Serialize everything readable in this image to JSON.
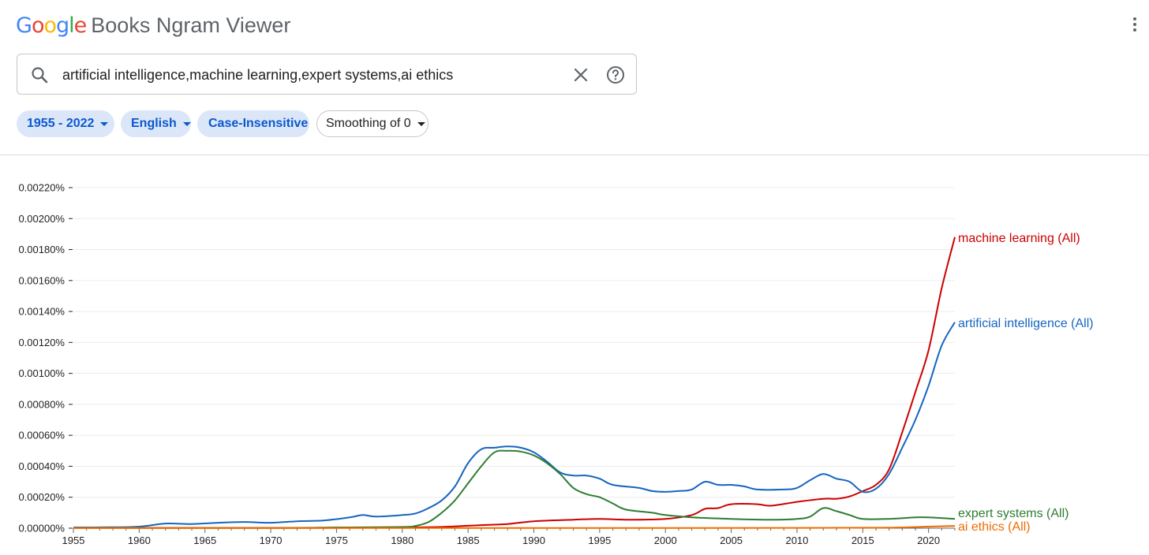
{
  "header": {
    "logo_google": "Google",
    "logo_rest": "Books Ngram Viewer",
    "google_colors": [
      "#4285F4",
      "#EA4335",
      "#FBBC05",
      "#4285F4",
      "#34A853",
      "#EA4335"
    ],
    "menu_icon": "more-vert-icon"
  },
  "search": {
    "value": "artificial intelligence,machine learning,expert systems,ai ethics",
    "search_icon": "search-icon",
    "clear_icon": "close-icon",
    "help_icon": "help-icon"
  },
  "filters": {
    "year_range": "1955 - 2022",
    "corpus": "English",
    "case": "Case-Insensitive",
    "smoothing": "Smoothing of 0"
  },
  "chart_data": {
    "type": "line",
    "x_range": [
      1955,
      2022
    ],
    "ylim": [
      0,
      0.0022
    ],
    "y_ticks": [
      "0.00000%",
      "0.00020%",
      "0.00040%",
      "0.00060%",
      "0.00080%",
      "0.00100%",
      "0.00120%",
      "0.00140%",
      "0.00160%",
      "0.00180%",
      "0.00200%",
      "0.00220%"
    ],
    "x_ticks": [
      "1955",
      "1960",
      "1965",
      "1970",
      "1975",
      "1980",
      "1985",
      "1990",
      "1995",
      "2000",
      "2005",
      "2010",
      "2015",
      "2020"
    ],
    "grid": true,
    "legend_placement": "right end of lines",
    "series": [
      {
        "name": "machine learning (All)",
        "color": "#cc0000",
        "points": [
          [
            1955,
            2e-06
          ],
          [
            1960,
            2e-06
          ],
          [
            1965,
            2e-06
          ],
          [
            1970,
            2e-06
          ],
          [
            1975,
            2e-06
          ],
          [
            1980,
            5e-06
          ],
          [
            1983,
            8e-06
          ],
          [
            1986,
            2e-05
          ],
          [
            1988,
            2.7e-05
          ],
          [
            1990,
            4.5e-05
          ],
          [
            1993,
            5.5e-05
          ],
          [
            1995,
            6e-05
          ],
          [
            1997,
            5.5e-05
          ],
          [
            2000,
            6e-05
          ],
          [
            2002,
            8.5e-05
          ],
          [
            2003,
            0.000125
          ],
          [
            2004,
            0.00013
          ],
          [
            2005,
            0.000155
          ],
          [
            2007,
            0.000155
          ],
          [
            2008,
            0.000145
          ],
          [
            2010,
            0.00017
          ],
          [
            2012,
            0.00019
          ],
          [
            2013,
            0.00019
          ],
          [
            2014,
            0.000205
          ],
          [
            2015,
            0.00024
          ],
          [
            2016,
            0.00028
          ],
          [
            2017,
            0.00038
          ],
          [
            2018,
            0.00062
          ],
          [
            2019,
            0.00088
          ],
          [
            2020,
            0.00115
          ],
          [
            2021,
            0.00155
          ],
          [
            2022,
            0.00188
          ]
        ]
      },
      {
        "name": "artificial intelligence (All)",
        "color": "#1565c0",
        "points": [
          [
            1955,
            5e-06
          ],
          [
            1958,
            6e-06
          ],
          [
            1960,
            1e-05
          ],
          [
            1962,
            3e-05
          ],
          [
            1964,
            2.7e-05
          ],
          [
            1966,
            3.5e-05
          ],
          [
            1968,
            4e-05
          ],
          [
            1970,
            3.5e-05
          ],
          [
            1972,
            4.5e-05
          ],
          [
            1974,
            5e-05
          ],
          [
            1976,
            7e-05
          ],
          [
            1977,
            8.5e-05
          ],
          [
            1978,
            7.5e-05
          ],
          [
            1980,
            8.5e-05
          ],
          [
            1981,
            9.5e-05
          ],
          [
            1982,
            0.00013
          ],
          [
            1983,
            0.00018
          ],
          [
            1984,
            0.00027
          ],
          [
            1985,
            0.00042
          ],
          [
            1986,
            0.00051
          ],
          [
            1987,
            0.00052
          ],
          [
            1988,
            0.000528
          ],
          [
            1989,
            0.00052
          ],
          [
            1990,
            0.00049
          ],
          [
            1991,
            0.00043
          ],
          [
            1992,
            0.00036
          ],
          [
            1993,
            0.00034
          ],
          [
            1994,
            0.00034
          ],
          [
            1995,
            0.00032
          ],
          [
            1996,
            0.00028
          ],
          [
            1998,
            0.00026
          ],
          [
            1999,
            0.00024
          ],
          [
            2000,
            0.000235
          ],
          [
            2001,
            0.00024
          ],
          [
            2002,
            0.00025
          ],
          [
            2003,
            0.0003
          ],
          [
            2004,
            0.00028
          ],
          [
            2005,
            0.00028
          ],
          [
            2006,
            0.00027
          ],
          [
            2007,
            0.00025
          ],
          [
            2009,
            0.00025
          ],
          [
            2010,
            0.00026
          ],
          [
            2011,
            0.00031
          ],
          [
            2012,
            0.00035
          ],
          [
            2013,
            0.00032
          ],
          [
            2014,
            0.0003
          ],
          [
            2015,
            0.000235
          ],
          [
            2016,
            0.000255
          ],
          [
            2017,
            0.00035
          ],
          [
            2018,
            0.00052
          ],
          [
            2019,
            0.0007
          ],
          [
            2020,
            0.00092
          ],
          [
            2021,
            0.00118
          ],
          [
            2022,
            0.00133
          ]
        ]
      },
      {
        "name": "expert systems (All)",
        "color": "#2e7d32",
        "points": [
          [
            1955,
            2e-06
          ],
          [
            1970,
            2e-06
          ],
          [
            1975,
            5e-06
          ],
          [
            1980,
            8e-06
          ],
          [
            1981,
            1.5e-05
          ],
          [
            1982,
            4e-05
          ],
          [
            1983,
            0.0001
          ],
          [
            1984,
            0.00018
          ],
          [
            1985,
            0.00029
          ],
          [
            1986,
            0.0004
          ],
          [
            1987,
            0.00049
          ],
          [
            1988,
            0.0005
          ],
          [
            1989,
            0.000495
          ],
          [
            1990,
            0.00047
          ],
          [
            1991,
            0.00042
          ],
          [
            1992,
            0.00035
          ],
          [
            1993,
            0.00026
          ],
          [
            1994,
            0.00022
          ],
          [
            1995,
            0.0002
          ],
          [
            1996,
            0.00016
          ],
          [
            1997,
            0.00012
          ],
          [
            1999,
            0.0001
          ],
          [
            2000,
            8.5e-05
          ],
          [
            2002,
            7e-05
          ],
          [
            2005,
            6e-05
          ],
          [
            2008,
            5.5e-05
          ],
          [
            2010,
            6e-05
          ],
          [
            2011,
            7.5e-05
          ],
          [
            2012,
            0.00013
          ],
          [
            2013,
            0.00011
          ],
          [
            2014,
            8.5e-05
          ],
          [
            2015,
            6e-05
          ],
          [
            2017,
            6e-05
          ],
          [
            2019,
            7e-05
          ],
          [
            2020,
            7e-05
          ],
          [
            2022,
            6e-05
          ]
        ]
      },
      {
        "name": "ai ethics (All)",
        "color": "#ef6c00",
        "points": [
          [
            1955,
            1e-06
          ],
          [
            2000,
            1e-06
          ],
          [
            2010,
            2e-06
          ],
          [
            2016,
            3e-06
          ],
          [
            2018,
            5e-06
          ],
          [
            2020,
            1e-05
          ],
          [
            2022,
            1.5e-05
          ]
        ]
      }
    ]
  }
}
